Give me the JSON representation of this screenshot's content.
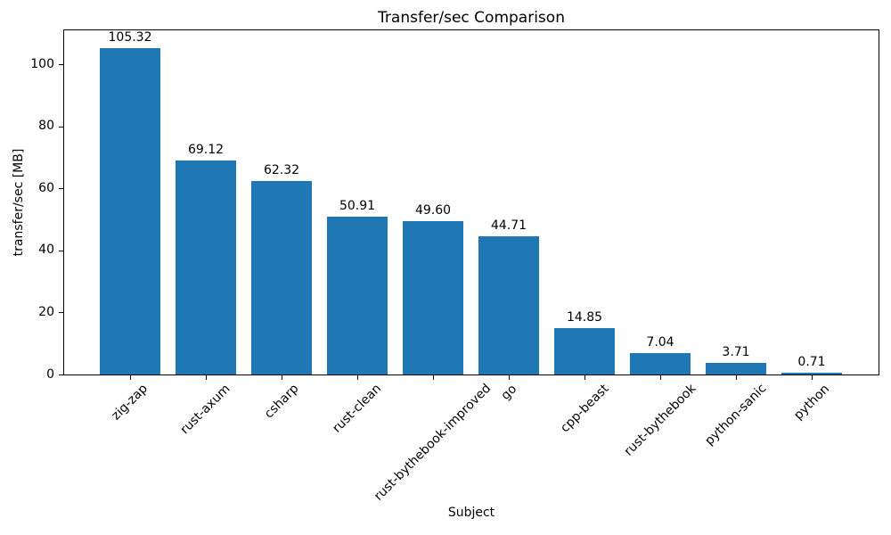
{
  "chart_data": {
    "type": "bar",
    "title": "Transfer/sec Comparison",
    "xlabel": "Subject",
    "ylabel": "transfer/sec [MB]",
    "categories": [
      "zig-zap",
      "rust-axum",
      "csharp",
      "rust-clean",
      "rust-bythebook-improved",
      "go",
      "cpp-beast",
      "rust-bythebook",
      "python-sanic",
      "python"
    ],
    "values": [
      105.32,
      69.12,
      62.32,
      50.91,
      49.6,
      44.71,
      14.85,
      7.04,
      3.71,
      0.71
    ],
    "value_labels": [
      "105.32",
      "69.12",
      "62.32",
      "50.91",
      "49.60",
      "44.71",
      "14.85",
      "7.04",
      "3.71",
      "0.71"
    ],
    "yticks": [
      0,
      20,
      40,
      60,
      80,
      100
    ],
    "ylim": [
      0,
      111
    ],
    "bar_color": "#1f77b4",
    "axis_color": "#000000",
    "text_color": "#000000",
    "background_color": "#ffffff",
    "grid": false,
    "legend": null
  }
}
